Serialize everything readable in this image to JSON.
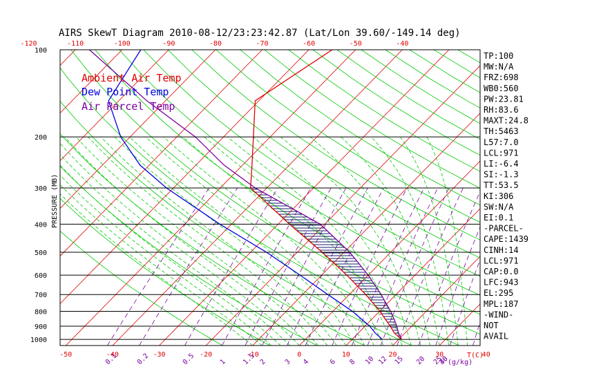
{
  "chart_data": {
    "type": "line",
    "title": "AIRS SkewT Diagram 2010-08-12/23:23:42.87 (Lat/Lon 39.60/-149.14 deg)",
    "ylabel": "PRESSURE (MB)",
    "xlabel": "T(C)",
    "mixing_ratio_unit": "(g/kg)",
    "pressure_ticks": [
      "100",
      "200",
      "300",
      "400",
      "500",
      "600",
      "700",
      "800",
      "900",
      "1000"
    ],
    "pressure_levels": [
      100,
      200,
      300,
      400,
      500,
      600,
      700,
      800,
      900,
      1000
    ],
    "top_temp_ticks": [
      "-120",
      "-110",
      "-100",
      "-90",
      "-80",
      "-70",
      "-60",
      "-50",
      "-40"
    ],
    "bottom_temp_ticks": [
      "-50",
      "-40",
      "-30",
      "-20",
      "-10",
      "0",
      "10",
      "20",
      "30",
      "40"
    ],
    "mixing_ratio_labels": [
      "0.1",
      "0.2",
      "0.5",
      "1",
      "1.5",
      "2",
      "3",
      "4",
      "6",
      "8",
      "10",
      "12",
      "15",
      "20",
      "25",
      "30",
      "40"
    ],
    "legend": [
      {
        "label": "Ambient Air Temp",
        "color": "#e00000"
      },
      {
        "label": "Dew Point Temp",
        "color": "#0000e0"
      },
      {
        "label": "Air Parcel Temp",
        "color": "#7a00a0"
      }
    ],
    "series": [
      {
        "name": "Ambient Air Temp",
        "color": "#e00000",
        "points": [
          [
            1000,
            20.6
          ],
          [
            950,
            17.7
          ],
          [
            900,
            15.4
          ],
          [
            850,
            12.8
          ],
          [
            800,
            10.1
          ],
          [
            700,
            3.5
          ],
          [
            600,
            -4.6
          ],
          [
            500,
            -14.7
          ],
          [
            400,
            -27.6
          ],
          [
            300,
            -43.5
          ],
          [
            250,
            -48.0
          ],
          [
            200,
            -53.6
          ],
          [
            150,
            -60.8
          ],
          [
            100,
            -55.0
          ]
        ]
      },
      {
        "name": "Dew Point Temp",
        "color": "#0000e0",
        "points": [
          [
            1000,
            16.5
          ],
          [
            950,
            13.6
          ],
          [
            900,
            11.0
          ],
          [
            850,
            7.7
          ],
          [
            800,
            4.2
          ],
          [
            700,
            -4.6
          ],
          [
            600,
            -14.6
          ],
          [
            500,
            -26.6
          ],
          [
            400,
            -42.5
          ],
          [
            300,
            -61.5
          ],
          [
            250,
            -72.0
          ],
          [
            200,
            -82.0
          ],
          [
            150,
            -92.2
          ],
          [
            100,
            -96.0
          ]
        ]
      },
      {
        "name": "Air Parcel Temp",
        "color": "#7a00a0",
        "points": [
          [
            1000,
            20.6
          ],
          [
            950,
            18.6
          ],
          [
            900,
            16.8
          ],
          [
            850,
            14.7
          ],
          [
            800,
            12.4
          ],
          [
            700,
            6.8
          ],
          [
            600,
            0.0
          ],
          [
            500,
            -8.8
          ],
          [
            400,
            -21.0
          ],
          [
            300,
            -42.5
          ],
          [
            250,
            -54.0
          ],
          [
            200,
            -66.0
          ],
          [
            150,
            -84.0
          ],
          [
            100,
            -107.0
          ]
        ]
      }
    ]
  },
  "indices": [
    "TP:100",
    "MW:N/A",
    "FRZ:698",
    "WB0:560",
    "PW:23.81",
    "RH:83.6",
    "MAXT:24.8",
    "TH:5463",
    "L57:7.0",
    "LCL:971",
    "LI:-6.4",
    "SI:-1.3",
    "TT:53.5",
    "KI:306",
    "SW:N/A",
    "EI:0.1",
    "-PARCEL-",
    "CAPE:1439",
    "CINH:14",
    "LCL:971",
    "CAP:0.0",
    "LFC:943",
    "EL:295",
    "MPL:187",
    "-WIND-",
    "NOT",
    "AVAIL"
  ],
  "colors": {
    "isotherm": "#e00000",
    "dry_adiabat": "#00c800",
    "moist_adiabat": "#00c800",
    "mixing_ratio": "#7a00a0",
    "axis": "#000000",
    "top_ticks": "#e00000",
    "bottom_ticks": "#e00000"
  }
}
